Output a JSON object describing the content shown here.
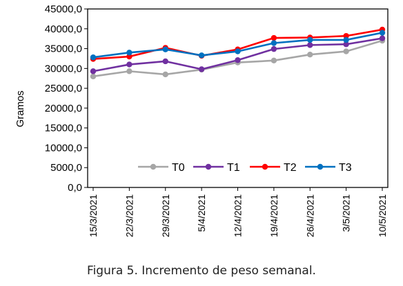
{
  "caption": "Figura 5. Incremento de peso semanal.",
  "chart_data": {
    "type": "line",
    "title": "",
    "xlabel": "",
    "ylabel": "Gramos",
    "ylim": [
      0,
      45000
    ],
    "yticks": [
      "0,0",
      "5000,0",
      "10000,0",
      "15000,0",
      "20000,0",
      "25000,0",
      "30000,0",
      "35000,0",
      "40000,0",
      "45000,0"
    ],
    "categories": [
      "15/3/2021",
      "22/3/2021",
      "29/3/2021",
      "5/4/2021",
      "12/4/2021",
      "19/4/2021",
      "26/4/2021",
      "3/5/2021",
      "10/5/2021"
    ],
    "grid": false,
    "legend_position": "bottom-inside",
    "series": [
      {
        "name": "T0",
        "color": "#a6a6a6",
        "values": [
          28000,
          29300,
          28500,
          29700,
          31500,
          32000,
          33500,
          34300,
          37000
        ]
      },
      {
        "name": "T1",
        "color": "#7030a0",
        "values": [
          29300,
          31000,
          31800,
          29800,
          32100,
          34900,
          35900,
          36100,
          37600
        ]
      },
      {
        "name": "T2",
        "color": "#ff0000",
        "values": [
          32400,
          33000,
          35200,
          33200,
          34800,
          37700,
          37800,
          38200,
          39800
        ]
      },
      {
        "name": "T3",
        "color": "#0070c0",
        "values": [
          32800,
          34000,
          34800,
          33300,
          34300,
          36400,
          37200,
          37200,
          39000
        ]
      }
    ]
  }
}
